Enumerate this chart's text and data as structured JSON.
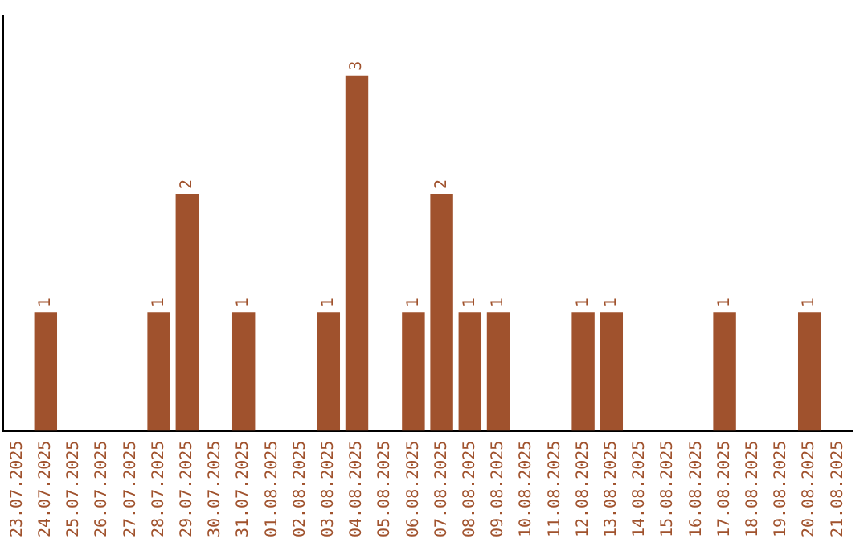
{
  "chart_data": {
    "type": "bar",
    "categories": [
      "23.07.2025",
      "24.07.2025",
      "25.07.2025",
      "26.07.2025",
      "27.07.2025",
      "28.07.2025",
      "29.07.2025",
      "30.07.2025",
      "31.07.2025",
      "01.08.2025",
      "02.08.2025",
      "03.08.2025",
      "04.08.2025",
      "05.08.2025",
      "06.08.2025",
      "07.08.2025",
      "08.08.2025",
      "09.08.2025",
      "10.08.2025",
      "11.08.2025",
      "12.08.2025",
      "13.08.2025",
      "14.08.2025",
      "15.08.2025",
      "16.08.2025",
      "17.08.2025",
      "18.08.2025",
      "19.08.2025",
      "20.08.2025",
      "21.08.2025"
    ],
    "values": [
      0,
      1,
      0,
      0,
      0,
      1,
      2,
      0,
      1,
      0,
      0,
      1,
      3,
      0,
      1,
      2,
      1,
      1,
      0,
      0,
      1,
      1,
      0,
      0,
      0,
      1,
      0,
      0,
      1,
      0
    ],
    "value_labels": [
      null,
      "1",
      null,
      null,
      null,
      "1",
      "2",
      null,
      "1",
      null,
      null,
      "1",
      "3",
      null,
      "1",
      "2",
      "1",
      "1",
      null,
      null,
      "1",
      "1",
      null,
      null,
      null,
      "1",
      null,
      null,
      "1",
      null
    ],
    "color": "#a0522d",
    "grid": false,
    "legend": false,
    "tick_labels": "x"
  }
}
